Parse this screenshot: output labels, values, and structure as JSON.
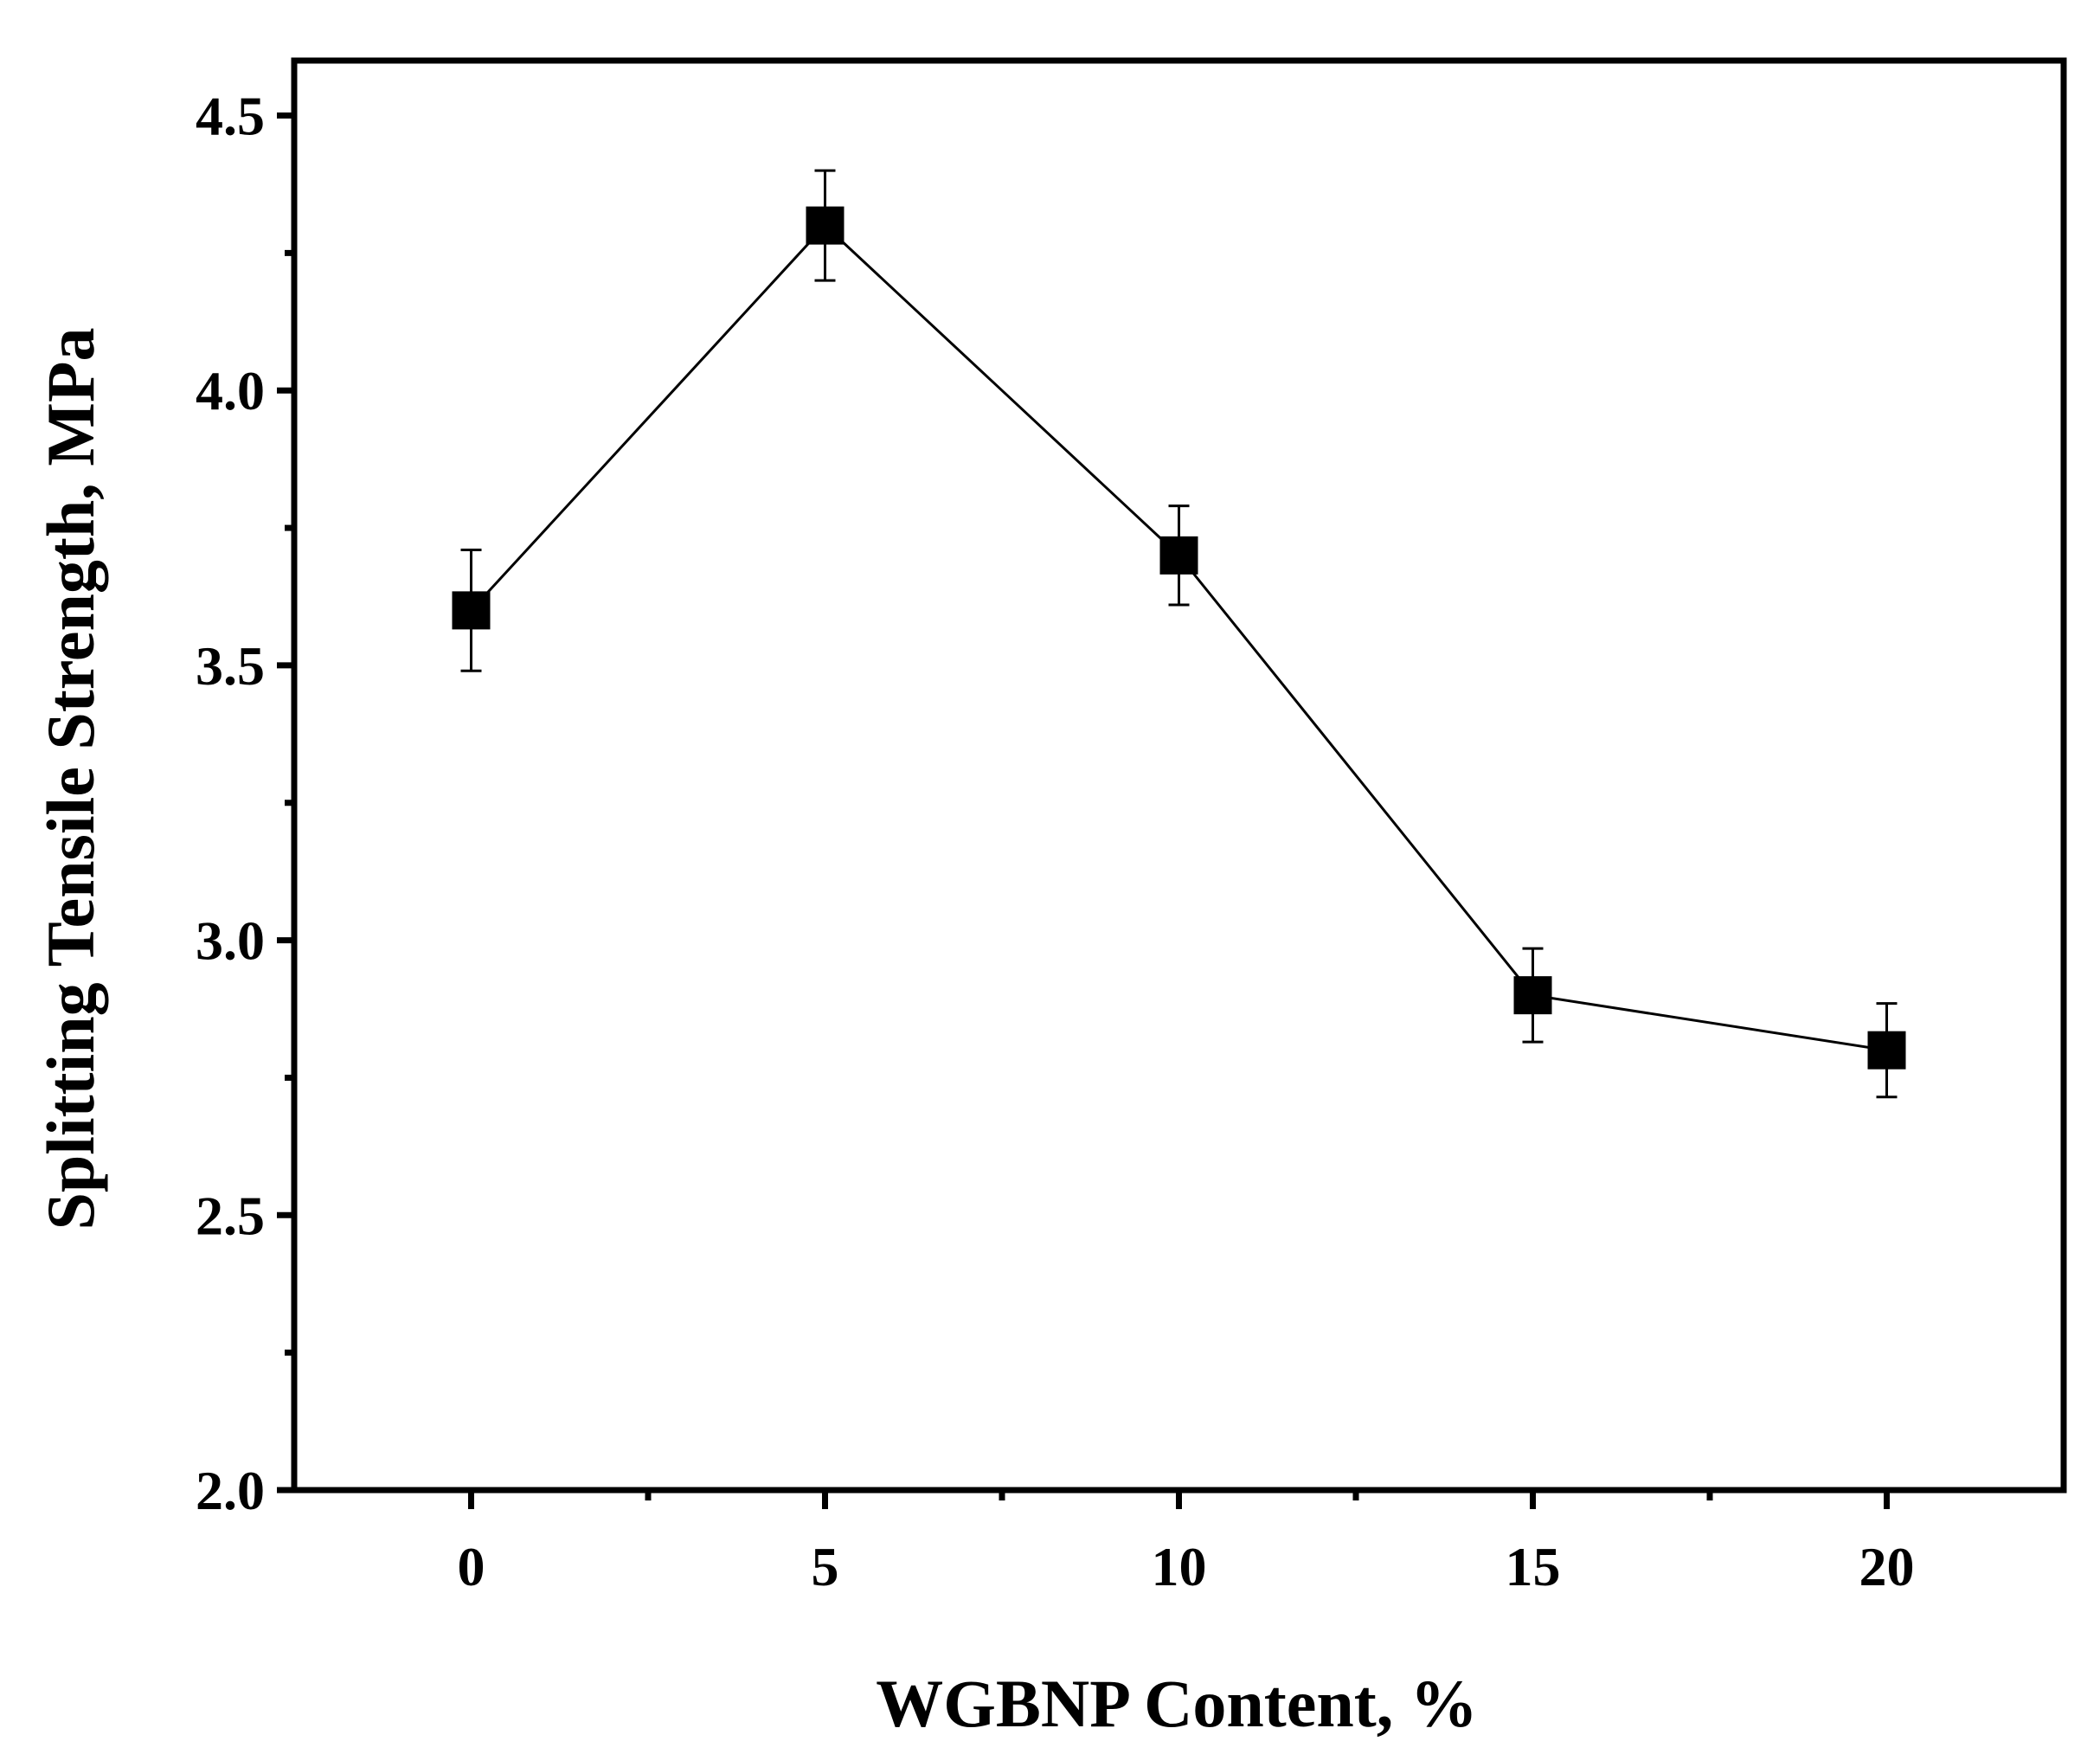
{
  "chart_data": {
    "type": "line",
    "title": "",
    "xlabel": "WGBNP Content, %",
    "ylabel": "Splitting Tensile Strength, MPa",
    "x": [
      0,
      5,
      10,
      15,
      20
    ],
    "series": [
      {
        "values": [
          3.6,
          4.3,
          3.7,
          2.9,
          2.8
        ],
        "error": [
          0.11,
          0.1,
          0.09,
          0.085,
          0.085
        ],
        "marker": "square",
        "color": "#000000"
      }
    ],
    "xlim": [
      -2.5,
      22.5
    ],
    "ylim": [
      2.0,
      4.6
    ],
    "x_major_ticks": [
      0,
      5,
      10,
      15,
      20
    ],
    "x_minor_ticks": [
      2.5,
      7.5,
      12.5,
      17.5
    ],
    "y_major_ticks": [
      2.0,
      2.5,
      3.0,
      3.5,
      4.0,
      4.5
    ],
    "y_minor_ticks": [
      2.25,
      2.75,
      3.25,
      3.75,
      4.25
    ],
    "x_tick_labels": [
      "0",
      "5",
      "10",
      "15",
      "20"
    ],
    "y_tick_labels": [
      "2.0",
      "2.5",
      "3.0",
      "3.5",
      "4.0",
      "4.5"
    ],
    "grid": false,
    "legend": "none"
  }
}
